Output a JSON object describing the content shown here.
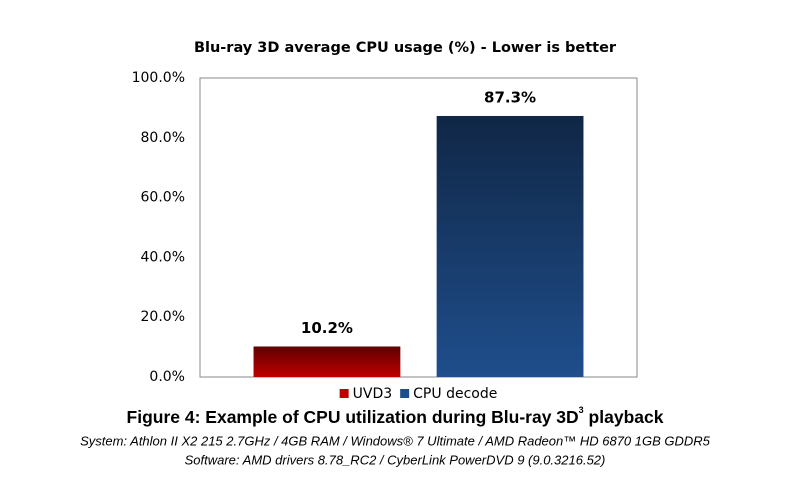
{
  "chart_data": {
    "type": "bar",
    "title": "Blu-ray 3D average CPU usage (%) - Lower is better",
    "categories": [
      null
    ],
    "series": [
      {
        "name": "UVD3",
        "color": "#c00000",
        "values": [
          10.2
        ],
        "value_labels": [
          "10.2%"
        ]
      },
      {
        "name": "CPU decode",
        "color": "#1f4e8c",
        "values": [
          87.3
        ],
        "value_labels": [
          "87.3%"
        ]
      }
    ],
    "ylim": [
      0,
      100
    ],
    "yticks": [
      {
        "value": 0,
        "label": "0.0%"
      },
      {
        "value": 20,
        "label": "20.0%"
      },
      {
        "value": 40,
        "label": "40.0%"
      },
      {
        "value": 60,
        "label": "60.0%"
      },
      {
        "value": 80,
        "label": "80.0%"
      },
      {
        "value": 100,
        "label": "100.0%"
      }
    ],
    "grid": false,
    "legend": "bottom"
  },
  "caption": {
    "title": "Figure 4: Example of CPU utilization during Blu-ray 3D",
    "superscript": "3",
    "title_end": " playback",
    "lines": [
      "System: Athlon II X2 215 2.7GHz / 4GB RAM / Windows® 7 Ultimate / AMD Radeon™ HD 6870 1GB GDDR5",
      "Software: AMD drivers 8.78_RC2 / CyberLink PowerDVD 9 (9.0.3216.52)"
    ]
  }
}
